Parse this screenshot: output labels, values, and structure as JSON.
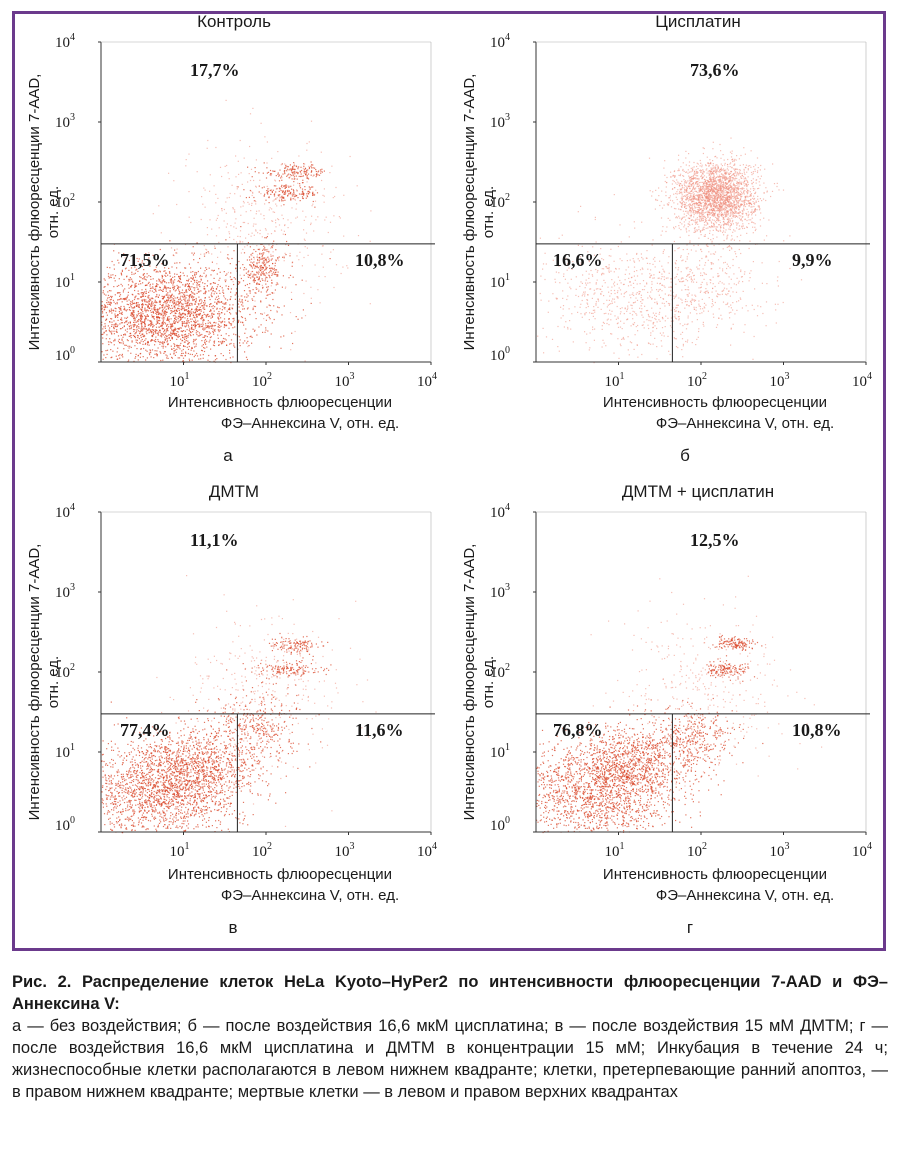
{
  "figure": {
    "x_axis_label_line1": "Интенсивность флюоресценции",
    "x_axis_label_line2": "ФЭ–Аннексина V, отн. ед.",
    "y_axis_label_line1": "Интенсивность флюоресценции 7-AAD,",
    "y_axis_label_line2": "отн. ед.",
    "tick_base": "10",
    "tick_exponents": [
      "0",
      "1",
      "2",
      "3",
      "4"
    ]
  },
  "caption": {
    "title": "Рис. 2. Распределение клеток HeLa Kyoto–HyPer2 по интенсивности флюоресценции 7-AAD и ФЭ–Аннексина V:",
    "body": "а — без воздействия; б — после воздействия 16,6 мкМ цисплатина; в — после воздействия 15 мМ ДМТМ; г — после воздействия 16,6 мкМ цисплатина и ДМТМ в концентрации 15 мМ; Инкубация в течение 24 ч; жизнеспособные клетки располагаются в левом нижнем квадранте; клетки, претерпевающие ранний апоптоз, — в правом нижнем квадранте; мертвые клетки — в левом и правом верхних квадрантах"
  },
  "colors": {
    "frame": "#6b3a8c",
    "dots_main": "#d9482b",
    "dots_light": "#ef8a7a",
    "axis": "#333333"
  },
  "chart_data": [
    {
      "type": "scatter",
      "title": "Контроль",
      "panel_letter": "а",
      "xlabel": "Интенсивность флюоресценции ФЭ–Аннексина V, отн. ед.",
      "ylabel": "Интенсивность флюоресценции 7-AAD, отн. ед.",
      "x_scale": "log",
      "y_scale": "log",
      "xlim": [
        1,
        10000
      ],
      "ylim": [
        1,
        10000
      ],
      "quadrant_gate": {
        "x": 45,
        "y": 30
      },
      "quadrants": {
        "upper": "17,7%",
        "lower_left": "71,5%",
        "lower_right": "10,8%"
      },
      "populations": [
        {
          "center": [
            6,
            4
          ],
          "spread": [
            0.55,
            0.32
          ],
          "n": 2600,
          "color": "main"
        },
        {
          "center": [
            90,
            15
          ],
          "spread": [
            0.15,
            0.15
          ],
          "n": 260,
          "color": "main"
        },
        {
          "center": [
            180,
            130
          ],
          "spread": [
            0.2,
            0.05
          ],
          "n": 160,
          "color": "main"
        },
        {
          "center": [
            230,
            240
          ],
          "spread": [
            0.2,
            0.05
          ],
          "n": 150,
          "color": "main"
        },
        {
          "center": [
            90,
            60
          ],
          "spread": [
            0.5,
            0.5
          ],
          "n": 400,
          "color": "light"
        }
      ]
    },
    {
      "type": "scatter",
      "title": "Цисплатин",
      "panel_letter": "б",
      "xlabel": "Интенсивность флюоресценции ФЭ–Аннексина V, отн. ед.",
      "ylabel": "Интенсивность флюоресценции 7-AAD, отн. ед.",
      "x_scale": "log",
      "y_scale": "log",
      "xlim": [
        1,
        10000
      ],
      "ylim": [
        1,
        10000
      ],
      "quadrant_gate": {
        "x": 45,
        "y": 30
      },
      "quadrants": {
        "upper": "73,6%",
        "lower_left": "16,6%",
        "lower_right": "9,9%"
      },
      "populations": [
        {
          "center": [
            150,
            120
          ],
          "spread": [
            0.25,
            0.22
          ],
          "n": 2400,
          "color": "light"
        },
        {
          "center": [
            15,
            6
          ],
          "spread": [
            0.55,
            0.35
          ],
          "n": 700,
          "color": "light"
        },
        {
          "center": [
            120,
            10
          ],
          "spread": [
            0.35,
            0.3
          ],
          "n": 300,
          "color": "light"
        }
      ]
    },
    {
      "type": "scatter",
      "title": "ДМТМ",
      "panel_letter": "в",
      "xlabel": "Интенсивность флюоресценции ФЭ–Аннексина V, отн. ед.",
      "ylabel": "Интенсивность флюоресценции 7-AAD, отн. ед.",
      "x_scale": "log",
      "y_scale": "log",
      "xlim": [
        1,
        10000
      ],
      "ylim": [
        1,
        10000
      ],
      "quadrant_gate": {
        "x": 45,
        "y": 30
      },
      "quadrants": {
        "upper": "11,1%",
        "lower_left": "77,4%",
        "lower_right": "11,6%"
      },
      "populations": [
        {
          "center": [
            5,
            3
          ],
          "spread": [
            0.5,
            0.3
          ],
          "n": 1600,
          "color": "main"
        },
        {
          "center": [
            14,
            7
          ],
          "spread": [
            0.35,
            0.25
          ],
          "n": 900,
          "color": "main"
        },
        {
          "center": [
            80,
            20
          ],
          "spread": [
            0.25,
            0.25
          ],
          "n": 350,
          "color": "main"
        },
        {
          "center": [
            190,
            110
          ],
          "spread": [
            0.18,
            0.05
          ],
          "n": 140,
          "color": "main"
        },
        {
          "center": [
            230,
            220
          ],
          "spread": [
            0.15,
            0.05
          ],
          "n": 120,
          "color": "main"
        },
        {
          "center": [
            100,
            60
          ],
          "spread": [
            0.5,
            0.5
          ],
          "n": 300,
          "color": "light"
        }
      ]
    },
    {
      "type": "scatter",
      "title": "ДМТМ + цисплатин",
      "panel_letter": "г",
      "xlabel": "Интенсивность флюоресценции ФЭ–Аннексина V, отн. ед.",
      "ylabel": "Интенсивность флюоресценции 7-AAD, отн. ед.",
      "x_scale": "log",
      "y_scale": "log",
      "xlim": [
        1,
        10000
      ],
      "ylim": [
        1,
        10000
      ],
      "quadrant_gate": {
        "x": 45,
        "y": 30
      },
      "quadrants": {
        "upper": "12,5%",
        "lower_left": "76,8%",
        "lower_right": "10,8%"
      },
      "populations": [
        {
          "center": [
            5,
            3
          ],
          "spread": [
            0.5,
            0.3
          ],
          "n": 1500,
          "color": "main"
        },
        {
          "center": [
            14,
            7
          ],
          "spread": [
            0.35,
            0.25
          ],
          "n": 900,
          "color": "main"
        },
        {
          "center": [
            80,
            15
          ],
          "spread": [
            0.25,
            0.2
          ],
          "n": 350,
          "color": "main"
        },
        {
          "center": [
            200,
            110
          ],
          "spread": [
            0.15,
            0.05
          ],
          "n": 140,
          "color": "main"
        },
        {
          "center": [
            260,
            230
          ],
          "spread": [
            0.12,
            0.04
          ],
          "n": 130,
          "color": "main"
        },
        {
          "center": [
            120,
            60
          ],
          "spread": [
            0.5,
            0.5
          ],
          "n": 320,
          "color": "light"
        }
      ]
    }
  ]
}
